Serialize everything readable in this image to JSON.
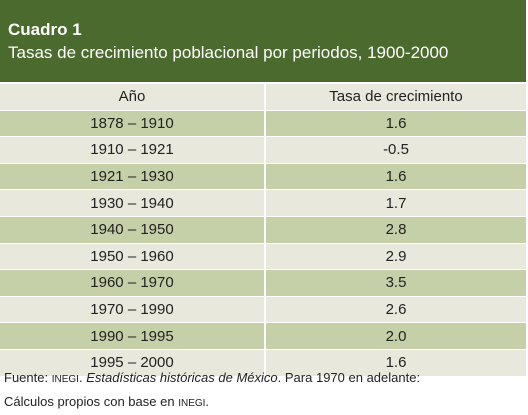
{
  "header": {
    "title": "Cuadro 1",
    "subtitle": "Tasas de crecimiento poblacional por periodos, 1900-2000"
  },
  "table": {
    "columns": [
      "Año",
      "Tasa de crecimiento"
    ],
    "rows": [
      [
        "1878 – 1910",
        "1.6"
      ],
      [
        "1910 – 1921",
        "-0.5"
      ],
      [
        "1921 – 1930",
        "1.6"
      ],
      [
        "1930 – 1940",
        "1.7"
      ],
      [
        "1940 – 1950",
        "2.8"
      ],
      [
        "1950 – 1960",
        "2.9"
      ],
      [
        "1960 – 1970",
        "3.5"
      ],
      [
        "1970 – 1990",
        "2.6"
      ],
      [
        "1990 – 1995",
        "2.0"
      ],
      [
        "1995 – 2000",
        "1.6"
      ]
    ]
  },
  "footer": {
    "label": "Fuente:",
    "org": "INEGI",
    "source": "Estadísticas históricas de México",
    "note": "Para 1970 en adelante:",
    "line2": "Cálculos propios con base en",
    "org2": "INEGI"
  }
}
